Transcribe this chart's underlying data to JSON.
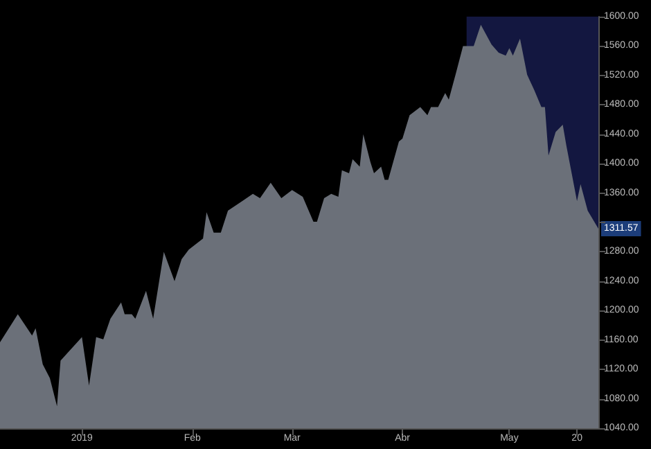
{
  "chart_data": {
    "type": "area",
    "x": [
      "2018-12-09",
      "2018-12-14",
      "2018-12-18",
      "2018-12-19",
      "2018-12-21",
      "2018-12-23",
      "2018-12-25",
      "2018-12-26",
      "2018-12-29",
      "2019-01-01",
      "2019-01-03",
      "2019-01-05",
      "2019-01-07",
      "2019-01-09",
      "2019-01-12",
      "2019-01-13",
      "2019-01-15",
      "2019-01-16",
      "2019-01-19",
      "2019-01-21",
      "2019-01-24",
      "2019-01-27",
      "2019-01-29",
      "2019-01-31",
      "2019-02-04",
      "2019-02-05",
      "2019-02-07",
      "2019-02-09",
      "2019-02-11",
      "2019-02-15",
      "2019-02-18",
      "2019-02-20",
      "2019-02-23",
      "2019-02-26",
      "2019-03-01",
      "2019-03-04",
      "2019-03-07",
      "2019-03-08",
      "2019-03-10",
      "2019-03-12",
      "2019-03-14",
      "2019-03-15",
      "2019-03-17",
      "2019-03-18",
      "2019-03-20",
      "2019-03-21",
      "2019-03-23",
      "2019-03-24",
      "2019-03-26",
      "2019-03-27",
      "2019-03-28",
      "2019-03-31",
      "2019-04-01",
      "2019-04-03",
      "2019-04-06",
      "2019-04-08",
      "2019-04-09",
      "2019-04-11",
      "2019-04-13",
      "2019-04-14",
      "2019-04-16",
      "2019-04-18",
      "2019-04-21",
      "2019-04-23",
      "2019-04-26",
      "2019-04-28",
      "2019-04-30",
      "2019-05-01",
      "2019-05-02",
      "2019-05-04",
      "2019-05-06",
      "2019-05-08",
      "2019-05-10",
      "2019-05-11",
      "2019-05-12",
      "2019-05-14",
      "2019-05-16",
      "2019-05-17",
      "2019-05-20",
      "2019-05-21",
      "2019-05-23",
      "2019-05-26"
    ],
    "series": [
      {
        "color": "#6b7079",
        "values": [
          1157,
          1195,
          1166,
          1176,
          1127,
          1108,
          1070,
          1132,
          1148,
          1164,
          1098,
          1164,
          1161,
          1189,
          1211,
          1195,
          1195,
          1189,
          1227,
          1189,
          1280,
          1240,
          1270,
          1283,
          1298,
          1334,
          1306,
          1306,
          1336,
          1349,
          1359,
          1353,
          1374,
          1353,
          1364,
          1355,
          1321,
          1321,
          1353,
          1359,
          1355,
          1391,
          1387,
          1406,
          1396,
          1440,
          1402,
          1387,
          1396,
          1378,
          1378,
          1430,
          1434,
          1466,
          1477,
          1466,
          1477,
          1477,
          1496,
          1487,
          1523,
          1560,
          1560,
          1589,
          1562,
          1551,
          1547,
          1557,
          1547,
          1570,
          1521,
          1500,
          1477,
          1477,
          1411,
          1443,
          1453,
          1425,
          1349,
          1372,
          1336,
          1311.57
        ]
      }
    ],
    "xlim": [
      "2018-12-09",
      "2019-05-26"
    ],
    "xticks": [
      {
        "value": "2019-01-01",
        "label": "2019"
      },
      {
        "value": "2019-02-01",
        "label": "Feb"
      },
      {
        "value": "2019-03-01",
        "label": "Mar"
      },
      {
        "value": "2019-04-01",
        "label": "Abr"
      },
      {
        "value": "2019-05-01",
        "label": "May"
      },
      {
        "value": "2019-05-20",
        "label": "20"
      }
    ],
    "ylim": [
      1040,
      1600
    ],
    "yticks": [
      {
        "value": 1040,
        "label": "1040.00"
      },
      {
        "value": 1080,
        "label": "1080.00"
      },
      {
        "value": 1120,
        "label": "1120.00"
      },
      {
        "value": 1160,
        "label": "1160.00"
      },
      {
        "value": 1200,
        "label": "1200.00"
      },
      {
        "value": 1240,
        "label": "1240.00"
      },
      {
        "value": 1280,
        "label": "1280.00"
      },
      {
        "value": 1320,
        "label": null
      },
      {
        "value": 1360,
        "label": "1360.00"
      },
      {
        "value": 1400,
        "label": "1400.00"
      },
      {
        "value": 1440,
        "label": "1440.00"
      },
      {
        "value": 1480,
        "label": "1480.00"
      },
      {
        "value": 1520,
        "label": "1520.00"
      },
      {
        "value": 1560,
        "label": "1560.00"
      },
      {
        "value": 1600,
        "label": "1600.00"
      }
    ],
    "bands": [
      {
        "axis": "x",
        "from": "2019-04-19",
        "to": "2019-05-26",
        "color": "#3c46c8"
      }
    ],
    "annotations": [
      {
        "text": "1311.57",
        "x": "2019-05-26",
        "y": 1311.57
      }
    ],
    "grid": false,
    "marker": "none"
  }
}
